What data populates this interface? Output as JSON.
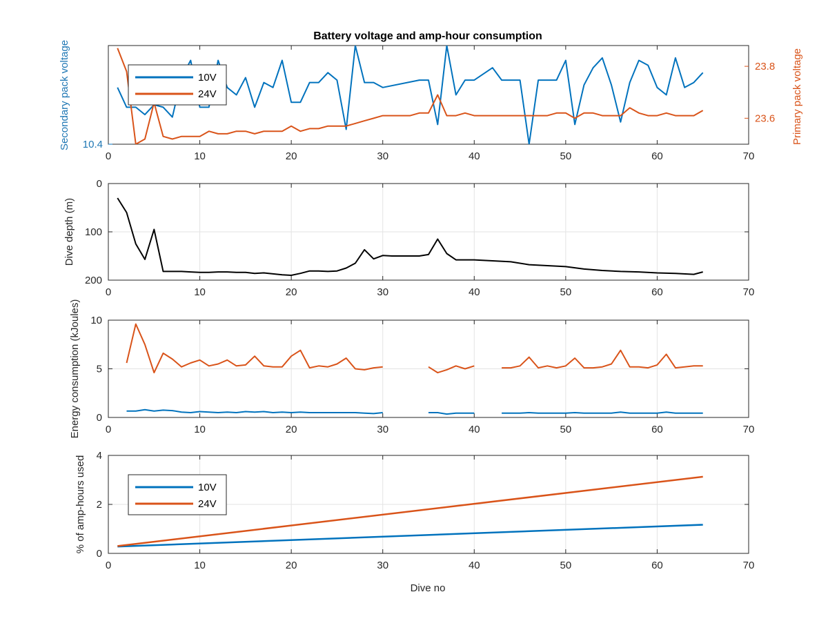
{
  "figure": {
    "title": "Battery voltage and amp-hour consumption",
    "xlabel": "Dive no",
    "colors": {
      "c10": "#0072bd",
      "c24": "#d95319",
      "depth": "#000000",
      "grid": "#e3e3e3",
      "axis": "#262626"
    }
  },
  "chart_data": [
    {
      "type": "line",
      "title": "Battery voltage and amp-hour consumption",
      "xlabel": "",
      "ylabel_left": "Secondary pack voltage",
      "ylabel_right": "Primary pack voltage",
      "xlim": [
        0,
        70
      ],
      "xticks": [
        0,
        10,
        20,
        30,
        40,
        50,
        60,
        70
      ],
      "ylim_left": [
        10.4,
        10.8
      ],
      "yticks_left": [
        10.4
      ],
      "ylim_right": [
        23.5,
        23.88
      ],
      "yticks_right": [
        23.6,
        23.8
      ],
      "legend": {
        "position": "top-left",
        "entries": [
          "10V",
          "24V"
        ]
      },
      "grid": false,
      "series": [
        {
          "name": "10V",
          "axis": "left",
          "x": [
            1,
            2,
            3,
            4,
            5,
            6,
            7,
            8,
            9,
            10,
            11,
            12,
            13,
            14,
            15,
            16,
            17,
            18,
            19,
            20,
            21,
            22,
            23,
            24,
            25,
            26,
            27,
            28,
            29,
            30,
            34,
            35,
            36,
            37,
            38,
            39,
            40,
            42,
            43,
            44,
            45,
            46,
            47,
            48,
            49,
            50,
            51,
            52,
            53,
            54,
            55,
            56,
            57,
            58,
            59,
            60,
            61,
            62,
            63,
            64,
            65
          ],
          "y": [
            10.63,
            10.55,
            10.55,
            10.52,
            10.56,
            10.55,
            10.51,
            10.67,
            10.74,
            10.55,
            10.55,
            10.74,
            10.63,
            10.6,
            10.67,
            10.55,
            10.65,
            10.63,
            10.74,
            10.57,
            10.57,
            10.65,
            10.65,
            10.69,
            10.66,
            10.46,
            10.8,
            10.65,
            10.65,
            10.63,
            10.66,
            10.66,
            10.48,
            10.8,
            10.6,
            10.66,
            10.66,
            10.71,
            10.66,
            10.66,
            10.66,
            10.4,
            10.66,
            10.66,
            10.66,
            10.74,
            10.48,
            10.64,
            10.71,
            10.75,
            10.64,
            10.49,
            10.65,
            10.74,
            10.72,
            10.63,
            10.6,
            10.75,
            10.63,
            10.65,
            10.69
          ]
        },
        {
          "name": "24V",
          "axis": "right",
          "x": [
            1,
            2,
            3,
            4,
            5,
            6,
            7,
            8,
            9,
            10,
            11,
            12,
            13,
            14,
            15,
            16,
            17,
            18,
            19,
            20,
            21,
            22,
            23,
            24,
            25,
            26,
            27,
            28,
            29,
            30,
            31,
            32,
            33,
            34,
            35,
            36,
            37,
            38,
            39,
            40,
            41,
            42,
            43,
            44,
            45,
            46,
            47,
            48,
            49,
            50,
            51,
            52,
            53,
            54,
            55,
            56,
            57,
            58,
            59,
            60,
            61,
            62,
            63,
            64,
            65
          ],
          "y": [
            23.87,
            23.78,
            23.5,
            23.52,
            23.66,
            23.53,
            23.52,
            23.53,
            23.53,
            23.53,
            23.55,
            23.54,
            23.54,
            23.55,
            23.55,
            23.54,
            23.55,
            23.55,
            23.55,
            23.57,
            23.55,
            23.56,
            23.56,
            23.57,
            23.57,
            23.57,
            23.58,
            23.59,
            23.6,
            23.61,
            23.61,
            23.61,
            23.61,
            23.62,
            23.62,
            23.69,
            23.61,
            23.61,
            23.62,
            23.61,
            23.61,
            23.61,
            23.61,
            23.61,
            23.61,
            23.61,
            23.61,
            23.61,
            23.62,
            23.62,
            23.6,
            23.62,
            23.62,
            23.61,
            23.61,
            23.61,
            23.64,
            23.62,
            23.61,
            23.61,
            23.62,
            23.61,
            23.61,
            23.61,
            23.63
          ]
        }
      ]
    },
    {
      "type": "line",
      "xlabel": "",
      "ylabel": "Dive depth (m)",
      "ylim": [
        200,
        0
      ],
      "reversed_y": true,
      "xlim": [
        0,
        70
      ],
      "xticks": [
        0,
        10,
        20,
        30,
        40,
        50,
        60,
        70
      ],
      "yticks": [
        0,
        100,
        200
      ],
      "grid": true,
      "series": [
        {
          "x": [
            1,
            2,
            3,
            4,
            5,
            6,
            7,
            8,
            9,
            10,
            11,
            12,
            13,
            14,
            15,
            16,
            17,
            18,
            19,
            20,
            21,
            22,
            23,
            24,
            25,
            26,
            27,
            28,
            29,
            30,
            31,
            32,
            33,
            34,
            35,
            36,
            37,
            38,
            39,
            40,
            42,
            44,
            46,
            48,
            50,
            52,
            54,
            56,
            58,
            60,
            62,
            64,
            65
          ],
          "y": [
            30,
            60,
            125,
            157,
            95,
            182,
            182,
            182,
            183,
            184,
            184,
            183,
            183,
            184,
            184,
            186,
            185,
            187,
            189,
            190,
            186,
            181,
            181,
            182,
            181,
            175,
            165,
            137,
            156,
            149,
            150,
            150,
            150,
            150,
            147,
            115,
            145,
            158,
            158,
            158,
            160,
            162,
            168,
            170,
            172,
            177,
            180,
            182,
            183,
            185,
            186,
            188,
            183
          ]
        }
      ]
    },
    {
      "type": "line",
      "xlabel": "",
      "ylabel": "Energy consumption (kJoules)",
      "xlim": [
        0,
        70
      ],
      "xticks": [
        0,
        10,
        20,
        30,
        40,
        50,
        60,
        70
      ],
      "ylim": [
        0,
        10
      ],
      "yticks": [
        0,
        5,
        10
      ],
      "grid": true,
      "series": [
        {
          "name": "10V",
          "segments": [
            {
              "x": [
                2,
                3,
                4,
                5,
                6,
                7,
                8,
                9,
                10,
                11,
                12,
                13,
                14,
                15,
                16,
                17,
                18,
                19,
                20,
                21,
                22,
                23,
                24,
                25,
                26,
                27,
                28,
                29,
                30
              ],
              "y": [
                0.65,
                0.65,
                0.8,
                0.65,
                0.75,
                0.7,
                0.55,
                0.5,
                0.6,
                0.55,
                0.5,
                0.55,
                0.5,
                0.6,
                0.55,
                0.6,
                0.5,
                0.55,
                0.5,
                0.55,
                0.5,
                0.5,
                0.5,
                0.5,
                0.5,
                0.5,
                0.45,
                0.4,
                0.5
              ]
            },
            {
              "x": [
                35,
                36,
                37,
                38,
                39,
                40
              ],
              "y": [
                0.5,
                0.5,
                0.35,
                0.45,
                0.45,
                0.45
              ]
            },
            {
              "x": [
                43,
                44,
                45,
                46,
                47,
                48,
                49,
                50,
                51,
                52,
                53,
                54,
                55,
                56,
                57,
                58,
                59,
                60,
                61,
                62,
                63,
                64,
                65
              ],
              "y": [
                0.45,
                0.45,
                0.45,
                0.5,
                0.45,
                0.45,
                0.45,
                0.45,
                0.5,
                0.45,
                0.45,
                0.45,
                0.45,
                0.55,
                0.45,
                0.45,
                0.45,
                0.45,
                0.55,
                0.45,
                0.45,
                0.45,
                0.45
              ]
            }
          ]
        },
        {
          "name": "24V",
          "segments": [
            {
              "x": [
                2,
                3,
                4,
                5,
                6,
                7,
                8,
                9,
                10,
                11,
                12,
                13,
                14,
                15,
                16,
                17,
                18,
                19,
                20,
                21,
                22,
                23,
                24,
                25,
                26,
                27,
                28,
                29,
                30
              ],
              "y": [
                5.6,
                9.6,
                7.5,
                4.6,
                6.6,
                6.0,
                5.2,
                5.6,
                5.9,
                5.3,
                5.5,
                5.9,
                5.3,
                5.4,
                6.3,
                5.3,
                5.2,
                5.2,
                6.3,
                6.9,
                5.1,
                5.3,
                5.2,
                5.5,
                6.1,
                5.0,
                4.9,
                5.1,
                5.2
              ]
            },
            {
              "x": [
                35,
                36,
                37,
                38,
                39,
                40
              ],
              "y": [
                5.2,
                4.6,
                4.9,
                5.3,
                5.0,
                5.3
              ]
            },
            {
              "x": [
                43,
                44,
                45,
                46,
                47,
                48,
                49,
                50,
                51,
                52,
                53,
                54,
                55,
                56,
                57,
                58,
                59,
                60,
                61,
                62,
                63,
                64,
                65
              ],
              "y": [
                5.1,
                5.1,
                5.3,
                6.2,
                5.1,
                5.3,
                5.1,
                5.3,
                6.1,
                5.1,
                5.1,
                5.2,
                5.5,
                6.9,
                5.2,
                5.2,
                5.1,
                5.4,
                6.5,
                5.1,
                5.2,
                5.3,
                5.3
              ]
            }
          ]
        }
      ]
    },
    {
      "type": "line",
      "xlabel": "Dive no",
      "ylabel": "% of amp-hours used",
      "xlim": [
        0,
        70
      ],
      "xticks": [
        0,
        10,
        20,
        30,
        40,
        50,
        60,
        70
      ],
      "ylim": [
        0,
        4
      ],
      "yticks": [
        0,
        2,
        4
      ],
      "grid": true,
      "legend": {
        "position": "top-left",
        "entries": [
          "10V",
          "24V"
        ]
      },
      "series": [
        {
          "name": "10V",
          "x": [
            1,
            65
          ],
          "y": [
            0.28,
            1.17
          ]
        },
        {
          "name": "24V",
          "x": [
            1,
            65
          ],
          "y": [
            0.3,
            3.13
          ]
        }
      ]
    }
  ]
}
